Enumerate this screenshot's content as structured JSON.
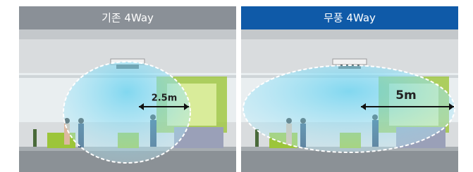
{
  "panels": [
    {
      "title": "기존 4Way",
      "distance": "2.5m"
    },
    {
      "title": "무풍 4Way",
      "distance": "5m"
    }
  ]
}
